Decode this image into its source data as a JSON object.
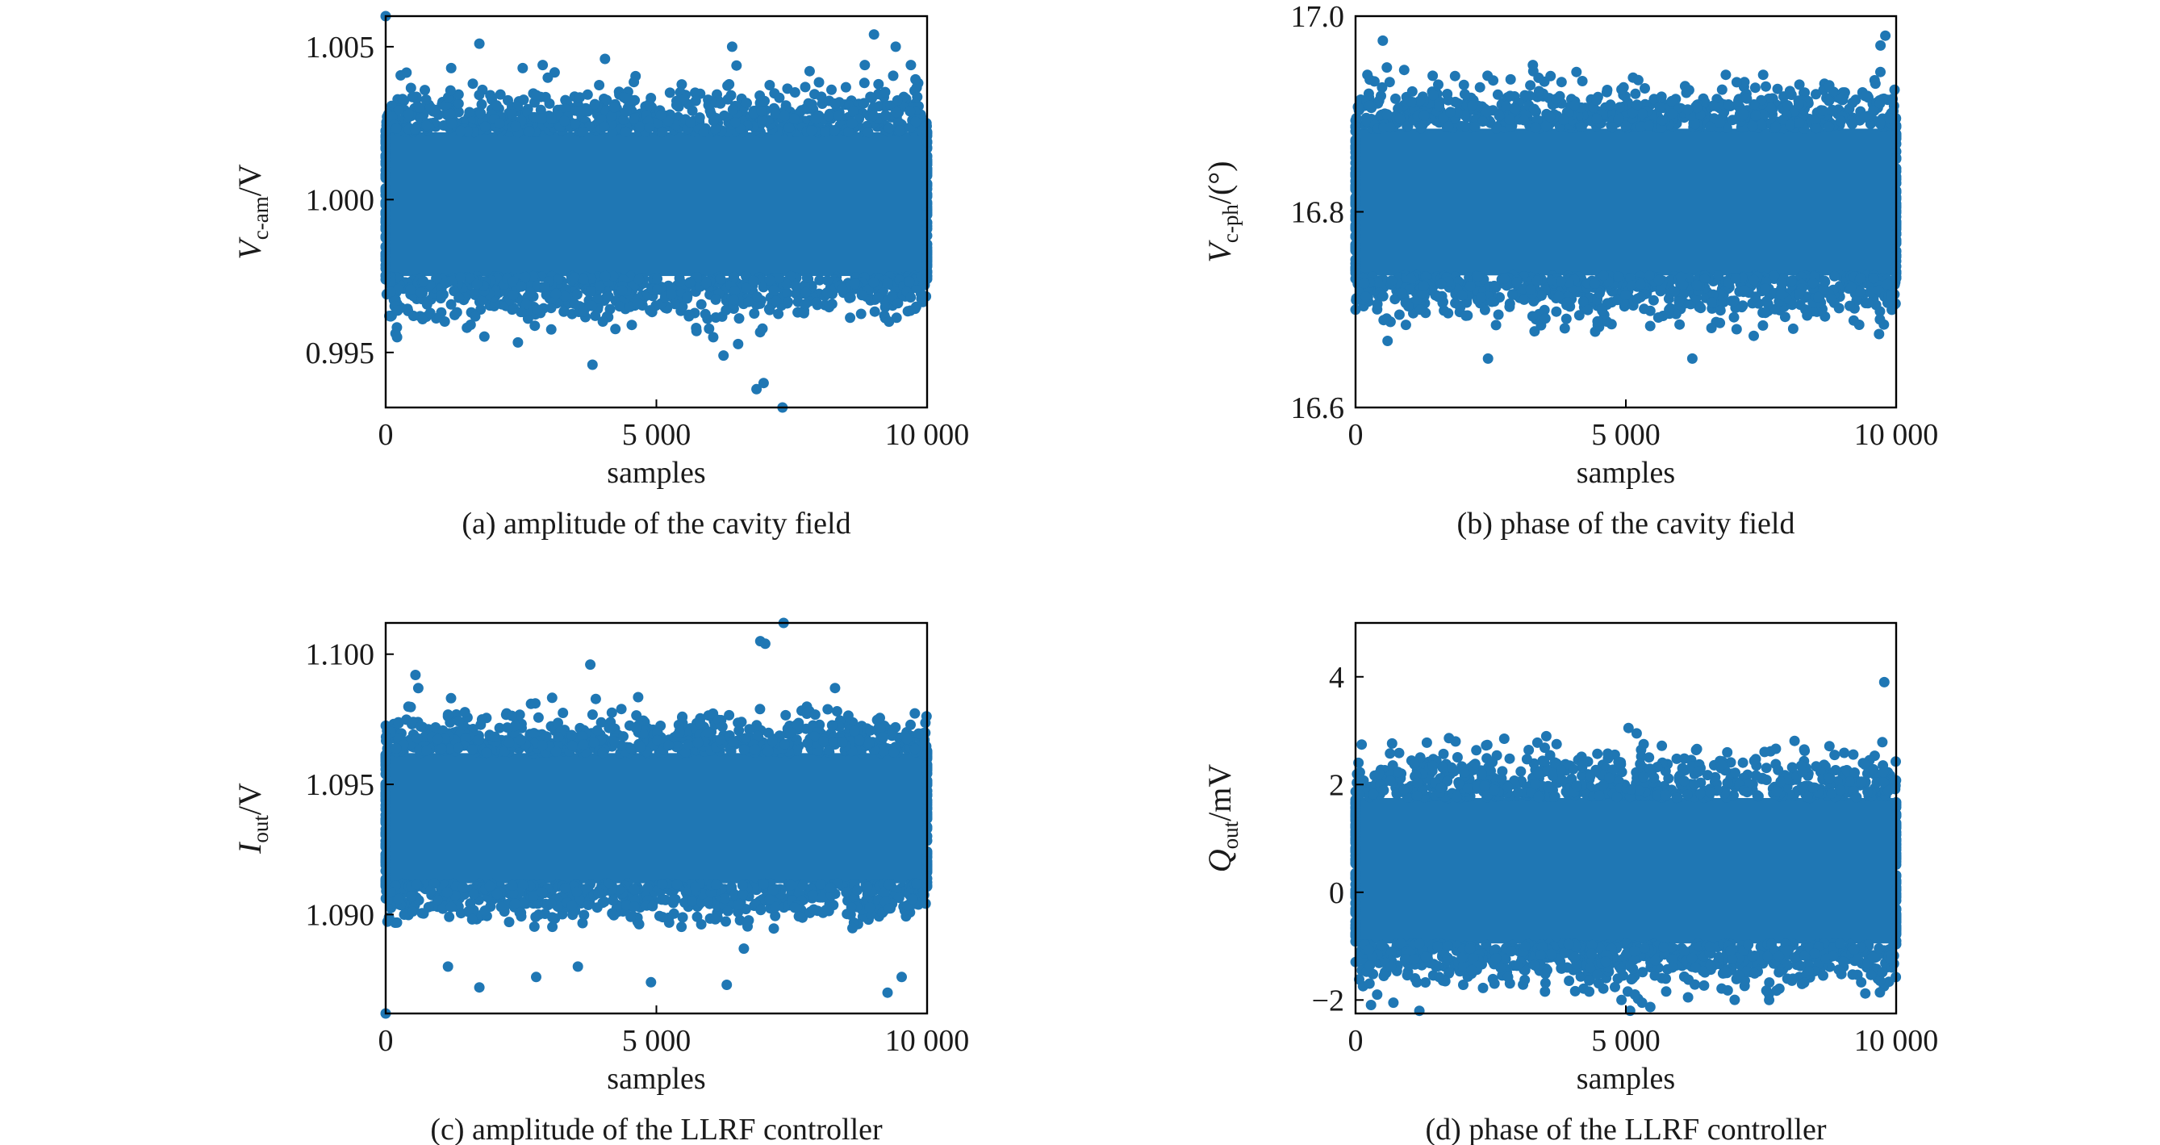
{
  "chart_data": [
    {
      "id": "a",
      "type": "scatter",
      "caption": "(a) amplitude of the cavity field",
      "xlabel": "samples",
      "ylabel": {
        "symbol": "V",
        "subscript": "c-am",
        "unit": "/V"
      },
      "xlim": [
        0,
        10000
      ],
      "ylim": [
        0.9932,
        1.006
      ],
      "xticks": [
        0,
        5000,
        10000
      ],
      "xtick_labels": [
        "0",
        "5 000",
        "10 000"
      ],
      "yticks": [
        0.995,
        1.0,
        1.005
      ],
      "ytick_labels": [
        "0.995",
        "1.000",
        "1.005"
      ],
      "grid": false,
      "color": "#1f77b4",
      "n_samples": 10000,
      "band": {
        "center": 0.9996,
        "core_low": 0.9975,
        "core_high": 1.0022
      },
      "outliers": [
        [
          0,
          1.006
        ],
        [
          7330,
          0.9932
        ],
        [
          6850,
          0.9938
        ],
        [
          6980,
          0.994
        ],
        [
          1730,
          1.0051
        ],
        [
          9020,
          1.0054
        ],
        [
          3820,
          0.9946
        ],
        [
          6240,
          0.9949
        ],
        [
          2530,
          1.0043
        ],
        [
          9420,
          1.005
        ],
        [
          4050,
          1.0046
        ],
        [
          6400,
          1.005
        ],
        [
          8850,
          1.0044
        ],
        [
          210,
          0.9955
        ],
        [
          6050,
          0.9955
        ],
        [
          2900,
          1.0044
        ],
        [
          9700,
          1.0044
        ],
        [
          1210,
          1.0043
        ],
        [
          7830,
          1.0042
        ]
      ]
    },
    {
      "id": "b",
      "type": "scatter",
      "caption": "(b) phase of the cavity field",
      "xlabel": "samples",
      "ylabel": {
        "symbol": "V",
        "subscript": "c-ph",
        "unit": "/(°)"
      },
      "xlim": [
        0,
        10000
      ],
      "ylim": [
        16.6,
        17.0
      ],
      "xticks": [
        0,
        5000,
        10000
      ],
      "xtick_labels": [
        "0",
        "5 000",
        "10 000"
      ],
      "yticks": [
        16.6,
        16.8,
        17.0
      ],
      "ytick_labels": [
        "16.6",
        "16.8",
        "17.0"
      ],
      "grid": false,
      "color": "#1f77b4",
      "n_samples": 10000,
      "band": {
        "center": 16.805,
        "core_low": 16.735,
        "core_high": 16.885
      },
      "outliers": [
        [
          9800,
          16.98
        ],
        [
          9710,
          16.97
        ],
        [
          3280,
          16.95
        ],
        [
          900,
          16.945
        ],
        [
          220,
          16.94
        ],
        [
          7540,
          16.94
        ],
        [
          6850,
          16.94
        ],
        [
          2450,
          16.65
        ],
        [
          6230,
          16.65
        ],
        [
          1530,
          16.93
        ],
        [
          4920,
          16.925
        ],
        [
          8210,
          16.93
        ],
        [
          7050,
          16.68
        ],
        [
          1200,
          16.7
        ],
        [
          5800,
          16.7
        ],
        [
          9700,
          16.69
        ],
        [
          0,
          16.7
        ]
      ]
    },
    {
      "id": "c",
      "type": "scatter",
      "caption": "(c) amplitude of the LLRF controller",
      "xlabel": "samples",
      "ylabel": {
        "symbol": "I",
        "subscript": "out",
        "unit": "/V"
      },
      "xlim": [
        0,
        10000
      ],
      "ylim": [
        1.0862,
        1.1012
      ],
      "xticks": [
        0,
        5000,
        10000
      ],
      "xtick_labels": [
        "0",
        "5 000",
        "10 000"
      ],
      "yticks": [
        1.09,
        1.095,
        1.1
      ],
      "ytick_labels": [
        "1.090",
        "1.095",
        "1.100"
      ],
      "grid": false,
      "color": "#1f77b4",
      "n_samples": 10000,
      "band": {
        "center": 1.0935,
        "core_low": 1.0912,
        "core_high": 1.0962
      },
      "outliers": [
        [
          7350,
          1.1012
        ],
        [
          6920,
          1.1005
        ],
        [
          7010,
          1.1004
        ],
        [
          0,
          1.0862
        ],
        [
          3780,
          1.0996
        ],
        [
          1730,
          1.0872
        ],
        [
          9270,
          1.087
        ],
        [
          6300,
          1.0873
        ],
        [
          4900,
          1.0874
        ],
        [
          9530,
          1.0876
        ],
        [
          550,
          1.0992
        ],
        [
          8300,
          1.0987
        ],
        [
          2780,
          1.0876
        ],
        [
          1150,
          1.088
        ],
        [
          3550,
          1.088
        ]
      ]
    },
    {
      "id": "d",
      "type": "scatter",
      "caption": "(d) phase of the LLRF controller",
      "xlabel": "samples",
      "ylabel": {
        "symbol": "Q",
        "subscript": "out",
        "unit": "/mV"
      },
      "xlim": [
        0,
        10000
      ],
      "ylim": [
        -2.25,
        5.0
      ],
      "xticks": [
        0,
        5000,
        10000
      ],
      "xtick_labels": [
        "0",
        "5 000",
        "10 000"
      ],
      "yticks": [
        -2,
        0,
        2,
        4
      ],
      "ytick_labels": [
        "−2",
        "0",
        "2",
        "4"
      ],
      "grid": false,
      "color": "#1f77b4",
      "n_samples": 10000,
      "band": {
        "center": 0.5,
        "core_low": -0.95,
        "core_high": 1.75
      },
      "outliers": [
        [
          9780,
          3.9
        ],
        [
          5050,
          3.05
        ],
        [
          5200,
          2.95
        ],
        [
          5330,
          2.75
        ],
        [
          1180,
          -2.2
        ],
        [
          7650,
          -2.0
        ],
        [
          5300,
          -2.05
        ],
        [
          4920,
          -2.0
        ],
        [
          1850,
          2.8
        ],
        [
          2750,
          2.85
        ],
        [
          700,
          -2.05
        ],
        [
          400,
          -1.9
        ],
        [
          3720,
          2.75
        ],
        [
          8300,
          2.65
        ],
        [
          6150,
          -1.95
        ]
      ]
    }
  ]
}
